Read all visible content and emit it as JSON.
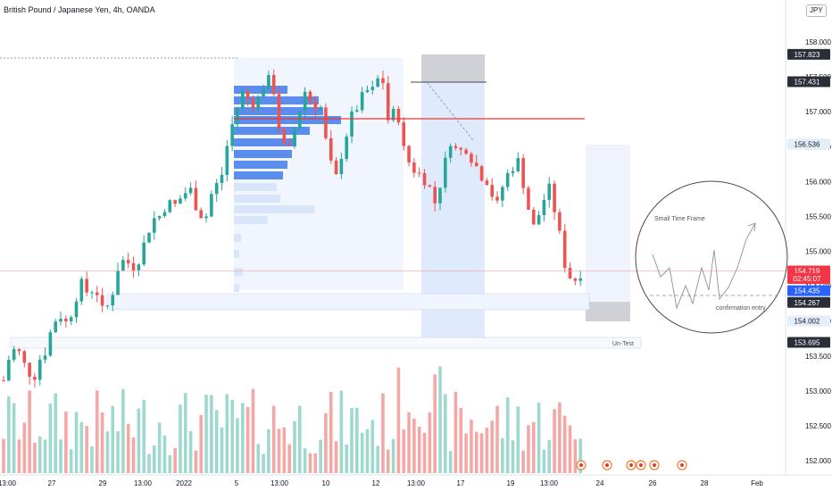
{
  "header": {
    "title": "British Pound / Japanese Yen, 4h, OANDA",
    "currency": "JPY"
  },
  "chart_data": {
    "type": "candlestick",
    "symbol": "British Pound / Japanese Yen",
    "interval": "4h",
    "source": "OANDA",
    "ylim": [
      151.8,
      158.3
    ],
    "y_ticks": [
      "158.000",
      "157.500",
      "157.000",
      "156.500",
      "156.000",
      "155.500",
      "155.000",
      "154.500",
      "154.000",
      "153.500",
      "153.000",
      "152.500",
      "152.000"
    ],
    "x_ticks": [
      "13:00",
      "27",
      "29",
      "13:00",
      "2022",
      "5",
      "13:00",
      "10",
      "12",
      "13:00",
      "17",
      "19",
      "13:00",
      "24",
      "26",
      "28",
      "Feb"
    ],
    "price_tags": [
      {
        "value": "157.823",
        "bg": "#2a2e39",
        "fg": "#ffffff",
        "price": 157.823
      },
      {
        "value": "157.431",
        "bg": "#2a2e39",
        "fg": "#ffffff",
        "price": 157.431
      },
      {
        "value": "156.536",
        "bg": "#e3eefb",
        "fg": "#131722",
        "price": 156.536
      },
      {
        "value": "154.719",
        "bg": "#f23645",
        "fg": "#ffffff",
        "price": 154.719
      },
      {
        "value": "02:45:07",
        "bg": "#f23645",
        "fg": "#ffffff",
        "price": 154.61
      },
      {
        "value": "154.435",
        "bg": "#2962ff",
        "fg": "#ffffff",
        "price": 154.435
      },
      {
        "value": "154.267",
        "bg": "#2a2e39",
        "fg": "#ffffff",
        "price": 154.267
      },
      {
        "value": "154.002",
        "bg": "#e3eefb",
        "fg": "#131722",
        "price": 154.002
      },
      {
        "value": "153.695",
        "bg": "#2a2e39",
        "fg": "#ffffff",
        "price": 153.695
      }
    ],
    "annotations": {
      "untest": "Un-Test",
      "small_tf": "Small Time Frame",
      "confirmation": "confirmation entry"
    },
    "red_level": 156.9,
    "colors": {
      "up": "#26a69a",
      "down": "#ef5350",
      "vol_up": "#9fd8cf",
      "vol_down": "#f5a7a5",
      "profile": "#5b8def",
      "profile_light": "#d9e5fb"
    }
  }
}
